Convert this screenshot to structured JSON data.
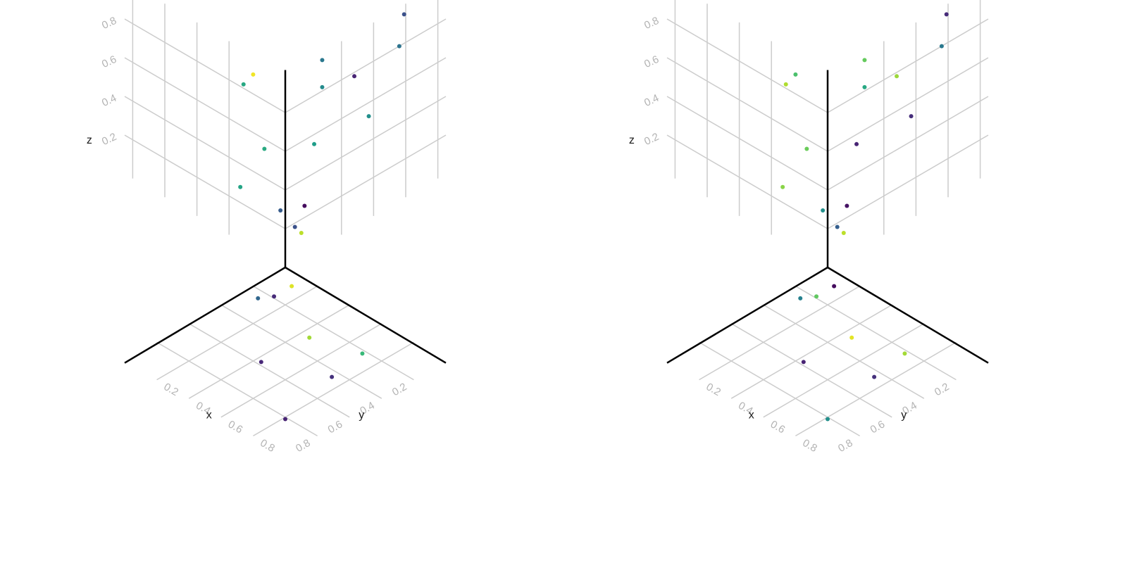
{
  "chart_data": [
    {
      "type": "scatter3d",
      "axes": {
        "x": {
          "label": "x",
          "ticks": [
            "0.2",
            "0.4",
            "0.6",
            "0.8"
          ]
        },
        "y": {
          "label": "y",
          "ticks": [
            "0.2",
            "0.4",
            "0.6",
            "0.8"
          ]
        },
        "z": {
          "label": "z",
          "ticks": [
            "0.2",
            "0.4",
            "0.6",
            "0.8"
          ]
        }
      },
      "colormap": "viridis",
      "points": [
        {
          "wall": "xz",
          "a": 0.2,
          "b": 0.9,
          "c": 0.98
        },
        {
          "wall": "xz",
          "a": 0.26,
          "b": 0.82,
          "c": 0.6
        },
        {
          "wall": "xz",
          "a": 0.28,
          "b": 0.28,
          "c": 0.58
        },
        {
          "wall": "xz",
          "a": 0.13,
          "b": 0.55,
          "c": 0.61
        },
        {
          "wall": "xz",
          "a": 0.03,
          "b": 0.28,
          "c": 0.29
        },
        {
          "wall": "yz",
          "a": 0.1,
          "b": 0.13,
          "c": 0.9
        },
        {
          "wall": "yz",
          "a": 0.06,
          "b": 0.18,
          "c": 0.25
        },
        {
          "wall": "yz",
          "a": 0.18,
          "b": 0.55,
          "c": 0.55
        },
        {
          "wall": "yz",
          "a": 0.23,
          "b": 0.82,
          "c": 0.48
        },
        {
          "wall": "yz",
          "a": 0.74,
          "b": 0.95,
          "c": 0.25
        },
        {
          "wall": "yz",
          "a": 0.43,
          "b": 0.78,
          "c": 0.1
        },
        {
          "wall": "yz",
          "a": 0.71,
          "b": 0.8,
          "c": 0.38
        },
        {
          "wall": "yz",
          "a": 0.52,
          "b": 0.53,
          "c": 0.5
        },
        {
          "wall": "yz",
          "a": 0.12,
          "b": 0.26,
          "c": 0.03
        },
        {
          "wall": "yz",
          "a": 0.23,
          "b": 0.96,
          "c": 0.4
        },
        {
          "wall": "xy",
          "a": 0.12,
          "b": 0.19,
          "c": 0.12
        },
        {
          "wall": "xy",
          "a": 0.45,
          "b": 0.3,
          "c": 0.86
        },
        {
          "wall": "xy",
          "a": 0.43,
          "b": 0.58,
          "c": 0.11
        },
        {
          "wall": "xy",
          "a": 0.73,
          "b": 0.44,
          "c": 0.14
        },
        {
          "wall": "xy",
          "a": 0.81,
          "b": 0.81,
          "c": 0.1
        },
        {
          "wall": "xy",
          "a": 0.7,
          "b": 0.22,
          "c": 0.67
        },
        {
          "wall": "xy",
          "a": 0.08,
          "b": 0.25,
          "c": 0.33
        },
        {
          "wall": "xy",
          "a": 0.12,
          "b": 0.08,
          "c": 0.95
        }
      ]
    },
    {
      "type": "scatter3d",
      "axes": {
        "x": {
          "label": "x",
          "ticks": [
            "0.2",
            "0.4",
            "0.6",
            "0.8"
          ]
        },
        "y": {
          "label": "y",
          "ticks": [
            "0.2",
            "0.4",
            "0.6",
            "0.8"
          ]
        },
        "z": {
          "label": "z",
          "ticks": [
            "0.2",
            "0.4",
            "0.6",
            "0.8"
          ]
        }
      },
      "colormap": "viridis",
      "points": [
        {
          "wall": "xz",
          "a": 0.2,
          "b": 0.9,
          "c": 0.71
        },
        {
          "wall": "xz",
          "a": 0.26,
          "b": 0.82,
          "c": 0.88
        },
        {
          "wall": "xz",
          "a": 0.28,
          "b": 0.28,
          "c": 0.82
        },
        {
          "wall": "xz",
          "a": 0.13,
          "b": 0.55,
          "c": 0.77
        },
        {
          "wall": "xz",
          "a": 0.03,
          "b": 0.28,
          "c": 0.5
        },
        {
          "wall": "yz",
          "a": 0.1,
          "b": 0.13,
          "c": 0.9
        },
        {
          "wall": "yz",
          "a": 0.06,
          "b": 0.18,
          "c": 0.3
        },
        {
          "wall": "yz",
          "a": 0.18,
          "b": 0.55,
          "c": 0.1
        },
        {
          "wall": "yz",
          "a": 0.23,
          "b": 0.82,
          "c": 0.6
        },
        {
          "wall": "yz",
          "a": 0.74,
          "b": 0.95,
          "c": 0.12
        },
        {
          "wall": "yz",
          "a": 0.43,
          "b": 0.78,
          "c": 0.85
        },
        {
          "wall": "yz",
          "a": 0.71,
          "b": 0.8,
          "c": 0.4
        },
        {
          "wall": "yz",
          "a": 0.52,
          "b": 0.53,
          "c": 0.13
        },
        {
          "wall": "yz",
          "a": 0.12,
          "b": 0.26,
          "c": 0.05
        },
        {
          "wall": "yz",
          "a": 0.23,
          "b": 0.96,
          "c": 0.76
        },
        {
          "wall": "xy",
          "a": 0.12,
          "b": 0.19,
          "c": 0.75
        },
        {
          "wall": "xy",
          "a": 0.45,
          "b": 0.3,
          "c": 0.96
        },
        {
          "wall": "xy",
          "a": 0.43,
          "b": 0.58,
          "c": 0.1
        },
        {
          "wall": "xy",
          "a": 0.73,
          "b": 0.44,
          "c": 0.14
        },
        {
          "wall": "xy",
          "a": 0.81,
          "b": 0.81,
          "c": 0.5
        },
        {
          "wall": "xy",
          "a": 0.7,
          "b": 0.22,
          "c": 0.86
        },
        {
          "wall": "xy",
          "a": 0.08,
          "b": 0.25,
          "c": 0.44
        },
        {
          "wall": "xy",
          "a": 0.12,
          "b": 0.08,
          "c": 0.03
        }
      ]
    }
  ]
}
